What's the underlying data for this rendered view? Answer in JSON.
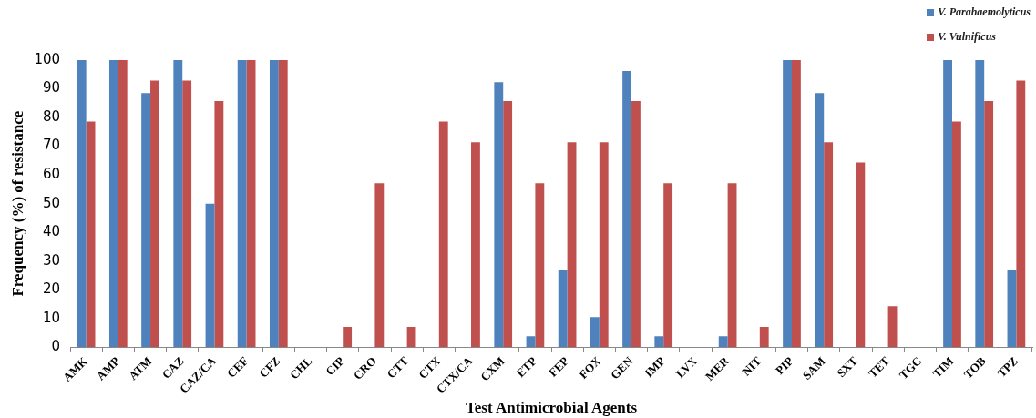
{
  "chart_data": {
    "type": "bar",
    "xlabel": "Test Antimicrobial Agents",
    "ylabel": "Frequency (%) of resistance",
    "categories": [
      "AMK",
      "AMP",
      "ATM",
      "CAZ",
      "CAZ/CA",
      "CEF",
      "CFZ",
      "CHL",
      "CIP",
      "CRO",
      "CTT",
      "CTX",
      "CTX/CA",
      "CXM",
      "ETP",
      "FEP",
      "FOX",
      "GEN",
      "IMP",
      "LVX",
      "MER",
      "NIT",
      "PIP",
      "SAM",
      "SXT",
      "TET",
      "TGC",
      "TIM",
      "TOB",
      "TPZ"
    ],
    "series": [
      {
        "name": "V. Parahaemolyticus",
        "color": "#4f81bd",
        "values": [
          100,
          100,
          88.5,
          100,
          50,
          100,
          100,
          0,
          0,
          0,
          0,
          0,
          0,
          92.3,
          3.8,
          26.9,
          10.5,
          96.2,
          3.8,
          0,
          3.8,
          0,
          100,
          88.5,
          0,
          0,
          0,
          100,
          100,
          26.9
        ]
      },
      {
        "name": "V. Vulnificus",
        "color": "#c0504d",
        "values": [
          78.6,
          100,
          92.9,
          92.9,
          85.7,
          100,
          100,
          0,
          7.1,
          57.1,
          7.1,
          78.6,
          71.4,
          85.7,
          57.1,
          71.4,
          71.4,
          85.7,
          57.1,
          0,
          57.1,
          7.1,
          100,
          71.4,
          64.3,
          14.3,
          0,
          78.6,
          85.7,
          92.9
        ]
      }
    ],
    "ylim": [
      0,
      100
    ],
    "yticks": [
      0,
      10,
      20,
      30,
      40,
      50,
      60,
      70,
      80,
      90,
      100
    ],
    "grid": false,
    "legend": "top right"
  }
}
